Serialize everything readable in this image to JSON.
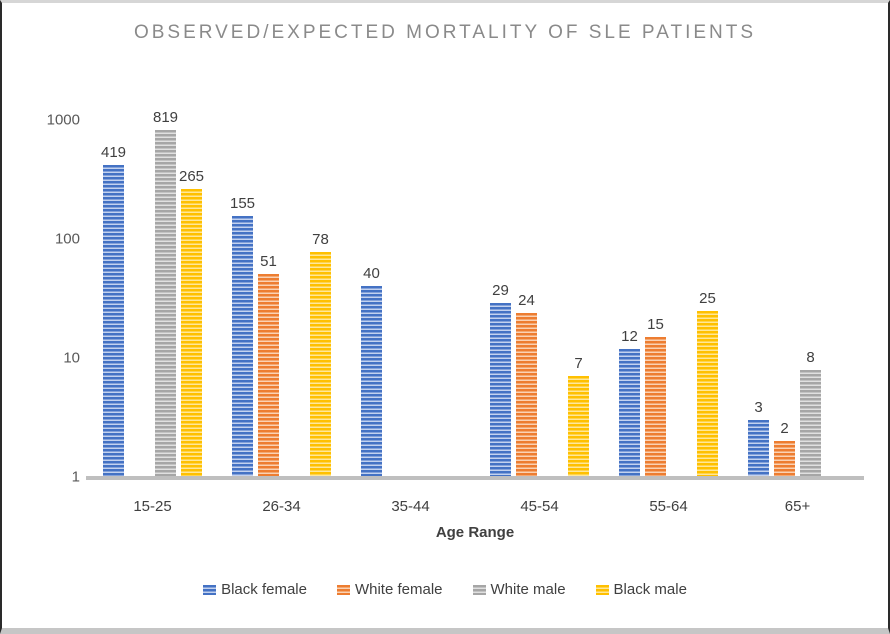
{
  "chart_data": {
    "type": "bar",
    "title": "OBSERVED/EXPECTED MORTALITY OF SLE PATIENTS",
    "xlabel": "Age Range",
    "ylabel": "",
    "scale": "log10",
    "ylim": [
      1,
      1000
    ],
    "y_ticks": [
      1000,
      100,
      10,
      1
    ],
    "grid": false,
    "legend_position": "bottom",
    "bar_labels": true,
    "categories": [
      "15-25",
      "26-34",
      "35-44",
      "45-54",
      "55-64",
      "65+"
    ],
    "series": [
      {
        "name": "Black female",
        "color": "#4472C4",
        "tint": "#C3D2EF",
        "values": [
          419,
          155,
          40,
          29,
          12,
          3
        ]
      },
      {
        "name": "White female",
        "color": "#ED7D31",
        "tint": "#FAD2B4",
        "values": [
          null,
          51,
          null,
          24,
          15,
          2
        ]
      },
      {
        "name": "White male",
        "color": "#A6A6A6",
        "tint": "#E0E0E0",
        "values": [
          819,
          null,
          null,
          null,
          null,
          8
        ]
      },
      {
        "name": "Black male",
        "color": "#FFC000",
        "tint": "#FFE799",
        "values": [
          265,
          78,
          null,
          7,
          25,
          null
        ]
      }
    ],
    "colors": {
      "axis_line": "#BFBFBF",
      "title_text": "#8A8A8A",
      "label_text": "#404040",
      "tick_text": "#595959"
    }
  }
}
